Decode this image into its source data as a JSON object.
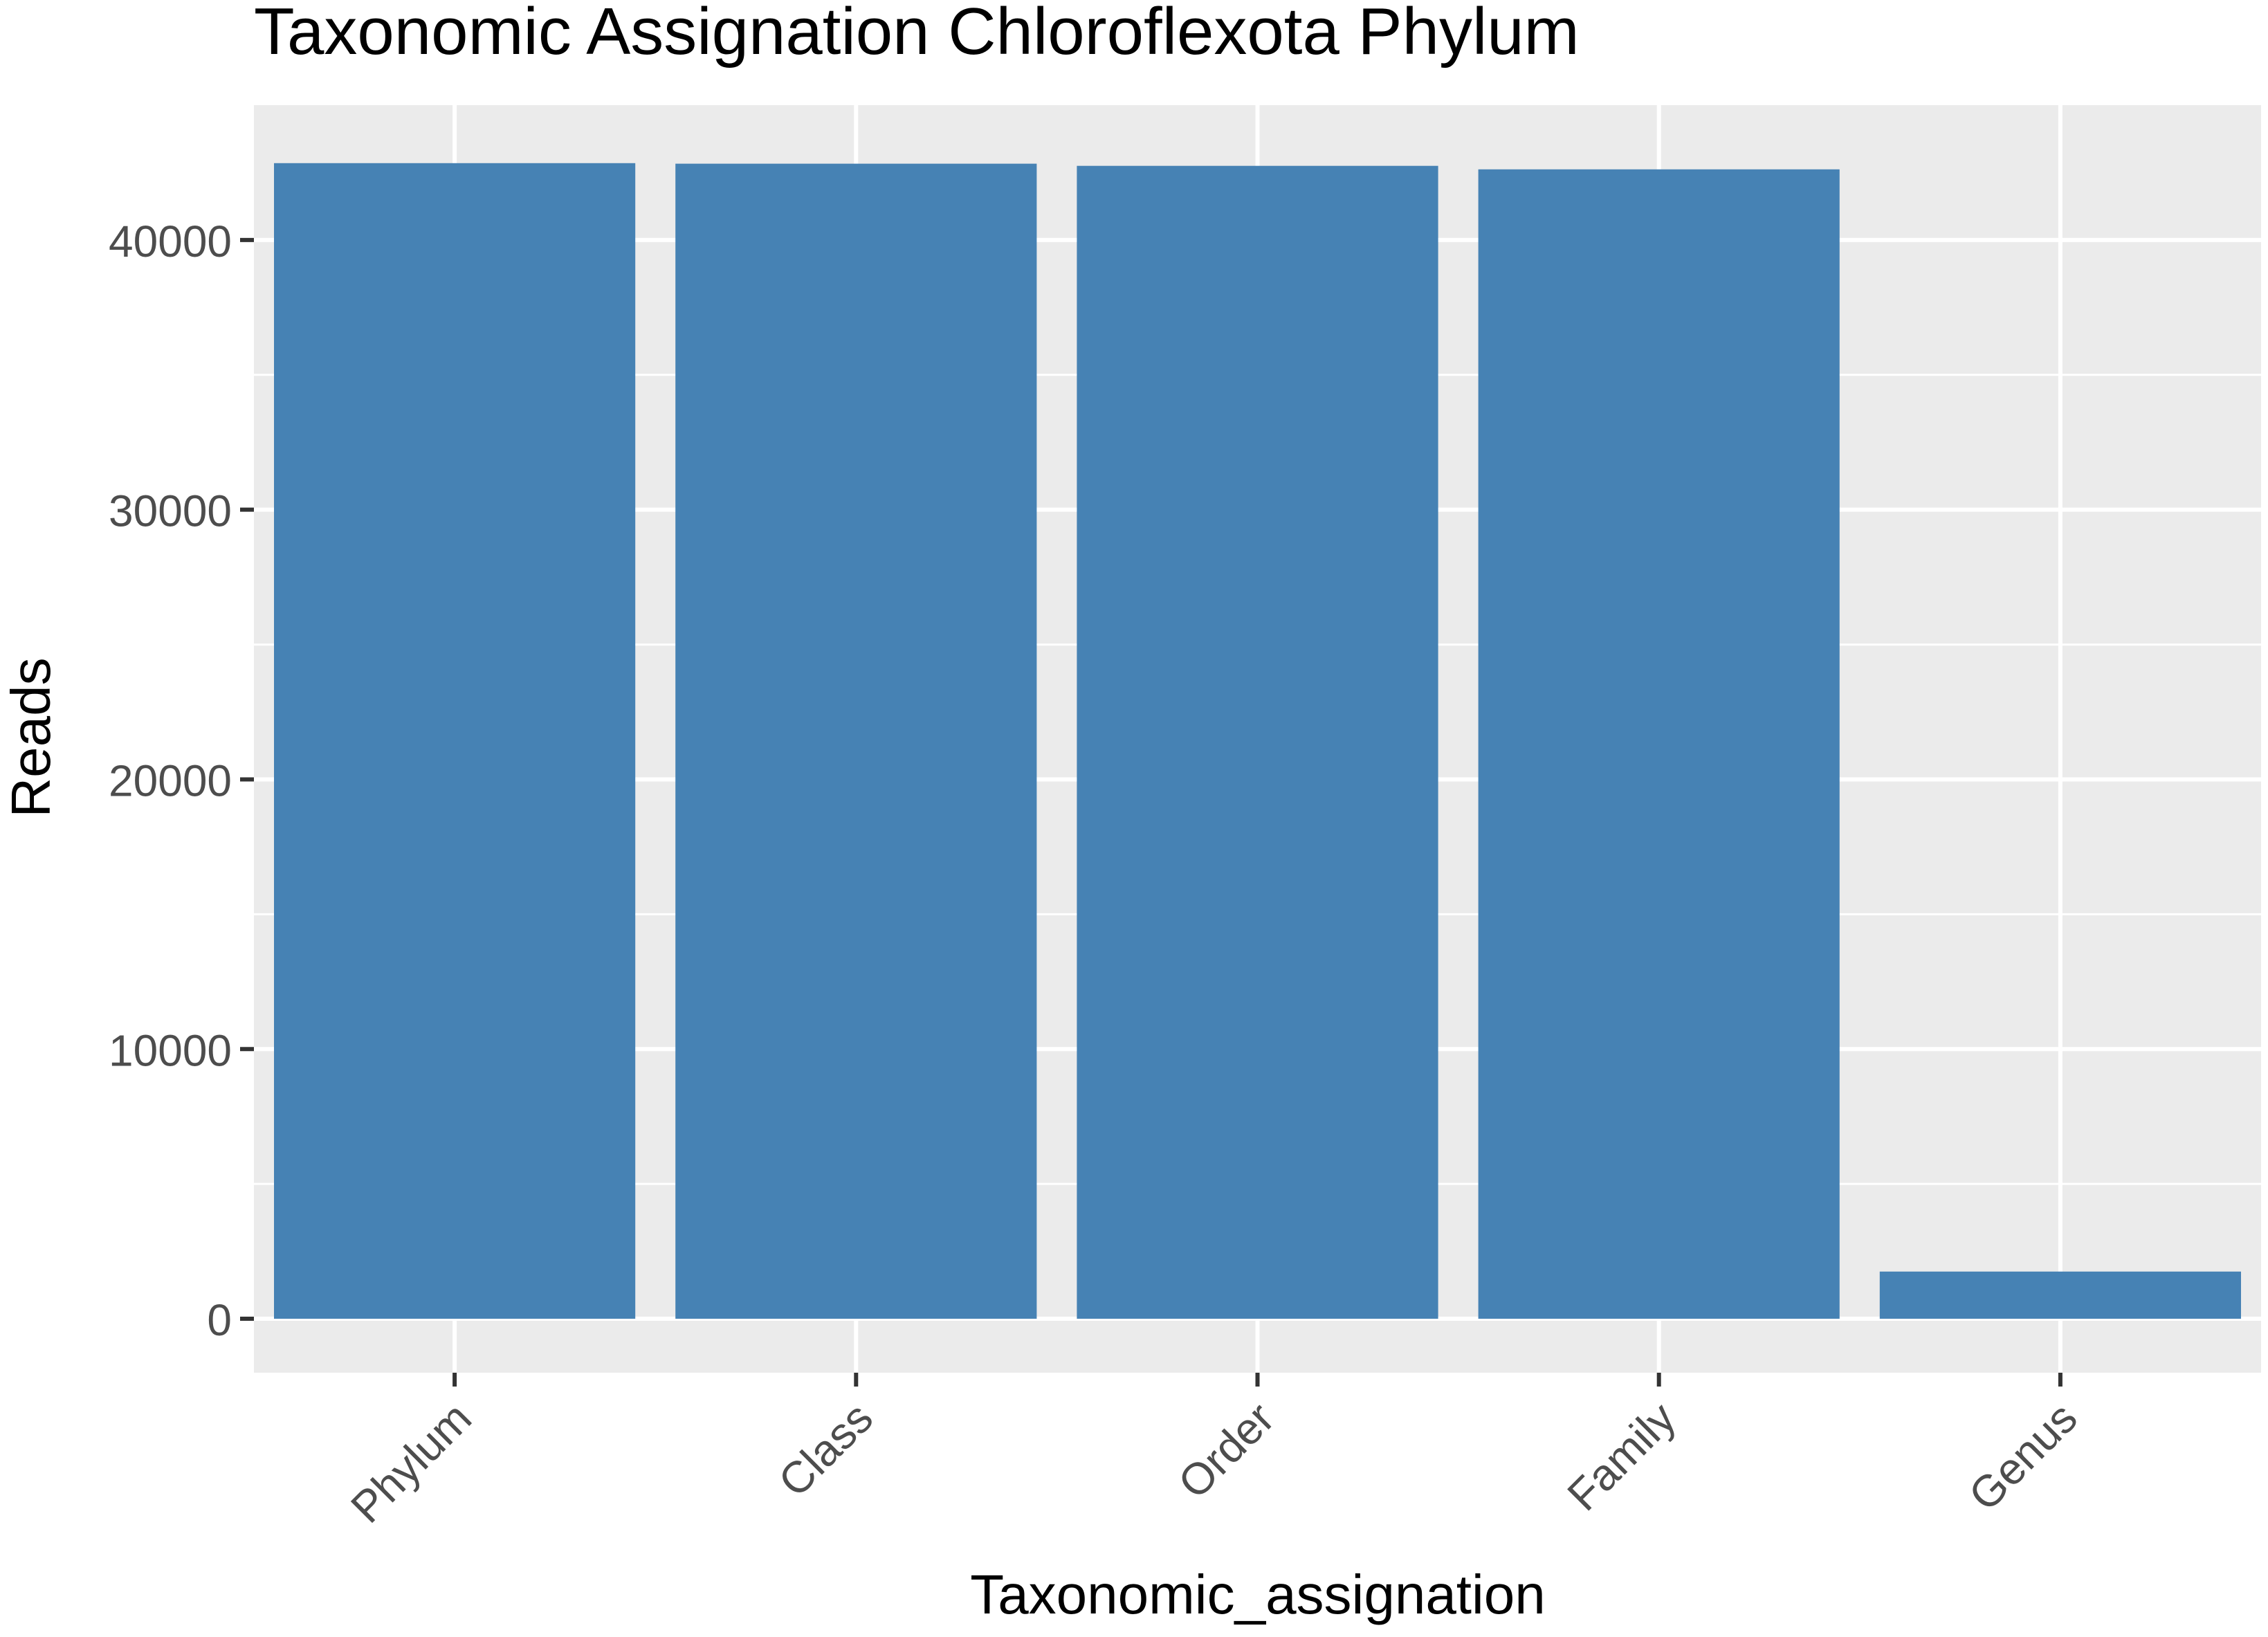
{
  "chart_data": {
    "type": "bar",
    "title": "Taxonomic Assignation Chloroflexota Phylum",
    "xlabel": "Taxonomic_assignation",
    "ylabel": "Reads",
    "categories": [
      "Phylum",
      "Class",
      "Order",
      "Family",
      "Genus"
    ],
    "values": [
      42850,
      42830,
      42750,
      42620,
      1750
    ],
    "ylim": [
      -2000,
      45000
    ],
    "yticks": [
      0,
      10000,
      20000,
      30000,
      40000
    ],
    "ytick_labels": [
      "0",
      "10000",
      "20000",
      "30000",
      "40000"
    ],
    "grid": true,
    "legend": "none",
    "colors": {
      "bar": "#4682b4",
      "panel_background": "#ebebeb",
      "grid_line": "#ffffff",
      "tick_text": "#4d4d4d",
      "tick_mark": "#333333",
      "title_text": "#000000"
    }
  }
}
